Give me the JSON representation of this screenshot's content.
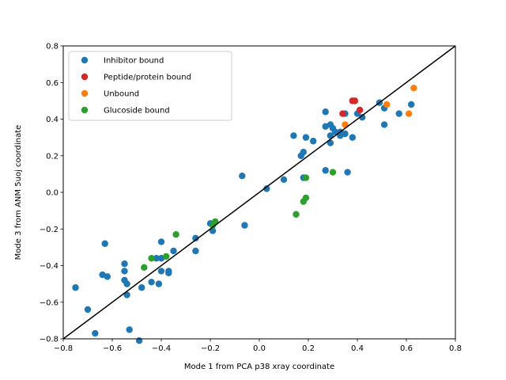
{
  "chart_data": {
    "type": "scatter",
    "xlabel": "Mode 1 from PCA p38 xray coordinate",
    "ylabel": "Mode 3 from ANM 5uoj coordinate",
    "xlim": [
      -0.8,
      0.8
    ],
    "ylim": [
      -0.8,
      0.8
    ],
    "xticks": [
      "−0.8",
      "−0.6",
      "−0.4",
      "−0.2",
      "0.0",
      "0.2",
      "0.4",
      "0.6",
      "0.8"
    ],
    "yticks": [
      "−0.8",
      "−0.6",
      "−0.4",
      "−0.2",
      "0.0",
      "0.2",
      "0.4",
      "0.6",
      "0.8"
    ],
    "grid": false,
    "legend_position": "top-left",
    "reference_line": {
      "x": [
        -0.8,
        0.8
      ],
      "y": [
        -0.8,
        0.8
      ],
      "color": "#000000"
    },
    "series": [
      {
        "name": "Inhibitor bound",
        "color": "#1f77b4",
        "points": [
          [
            -0.75,
            -0.52
          ],
          [
            -0.7,
            -0.64
          ],
          [
            -0.67,
            -0.77
          ],
          [
            -0.64,
            -0.45
          ],
          [
            -0.63,
            -0.28
          ],
          [
            -0.62,
            -0.46
          ],
          [
            -0.55,
            -0.39
          ],
          [
            -0.55,
            -0.43
          ],
          [
            -0.55,
            -0.48
          ],
          [
            -0.54,
            -0.5
          ],
          [
            -0.54,
            -0.56
          ],
          [
            -0.53,
            -0.75
          ],
          [
            -0.49,
            -0.81
          ],
          [
            -0.48,
            -0.52
          ],
          [
            -0.44,
            -0.49
          ],
          [
            -0.42,
            -0.36
          ],
          [
            -0.41,
            -0.5
          ],
          [
            -0.4,
            -0.27
          ],
          [
            -0.4,
            -0.36
          ],
          [
            -0.4,
            -0.43
          ],
          [
            -0.37,
            -0.43
          ],
          [
            -0.37,
            -0.44
          ],
          [
            -0.35,
            -0.32
          ],
          [
            -0.26,
            -0.25
          ],
          [
            -0.26,
            -0.32
          ],
          [
            -0.19,
            -0.21
          ],
          [
            -0.2,
            -0.17
          ],
          [
            -0.07,
            0.09
          ],
          [
            -0.06,
            -0.18
          ],
          [
            0.03,
            0.02
          ],
          [
            0.1,
            0.07
          ],
          [
            0.14,
            0.31
          ],
          [
            0.17,
            0.2
          ],
          [
            0.18,
            0.08
          ],
          [
            0.18,
            0.22
          ],
          [
            0.19,
            0.3
          ],
          [
            0.22,
            0.28
          ],
          [
            0.27,
            0.12
          ],
          [
            0.27,
            0.36
          ],
          [
            0.27,
            0.44
          ],
          [
            0.29,
            0.31
          ],
          [
            0.29,
            0.37
          ],
          [
            0.29,
            0.27
          ],
          [
            0.3,
            0.35
          ],
          [
            0.31,
            0.33
          ],
          [
            0.33,
            0.31
          ],
          [
            0.33,
            0.33
          ],
          [
            0.35,
            0.43
          ],
          [
            0.35,
            0.32
          ],
          [
            0.36,
            0.11
          ],
          [
            0.38,
            0.3
          ],
          [
            0.4,
            0.43
          ],
          [
            0.42,
            0.41
          ],
          [
            0.49,
            0.49
          ],
          [
            0.51,
            0.46
          ],
          [
            0.51,
            0.37
          ],
          [
            0.57,
            0.43
          ],
          [
            0.62,
            0.48
          ]
        ]
      },
      {
        "name": "Peptide/protein bound",
        "color": "#d62728",
        "points": [
          [
            0.34,
            0.43
          ],
          [
            0.38,
            0.5
          ],
          [
            0.39,
            0.5
          ],
          [
            0.41,
            0.45
          ]
        ]
      },
      {
        "name": "Unbound",
        "color": "#ff7f0e",
        "points": [
          [
            0.35,
            0.37
          ],
          [
            0.52,
            0.48
          ],
          [
            0.61,
            0.43
          ],
          [
            0.63,
            0.57
          ]
        ]
      },
      {
        "name": "Glucoside bound",
        "color": "#2ca02c",
        "points": [
          [
            -0.47,
            -0.41
          ],
          [
            -0.44,
            -0.36
          ],
          [
            -0.38,
            -0.35
          ],
          [
            -0.34,
            -0.23
          ],
          [
            -0.18,
            -0.16
          ],
          [
            -0.19,
            -0.18
          ],
          [
            0.15,
            -0.12
          ],
          [
            0.18,
            -0.05
          ],
          [
            0.19,
            -0.03
          ],
          [
            0.19,
            0.08
          ],
          [
            0.3,
            0.11
          ]
        ]
      }
    ]
  }
}
